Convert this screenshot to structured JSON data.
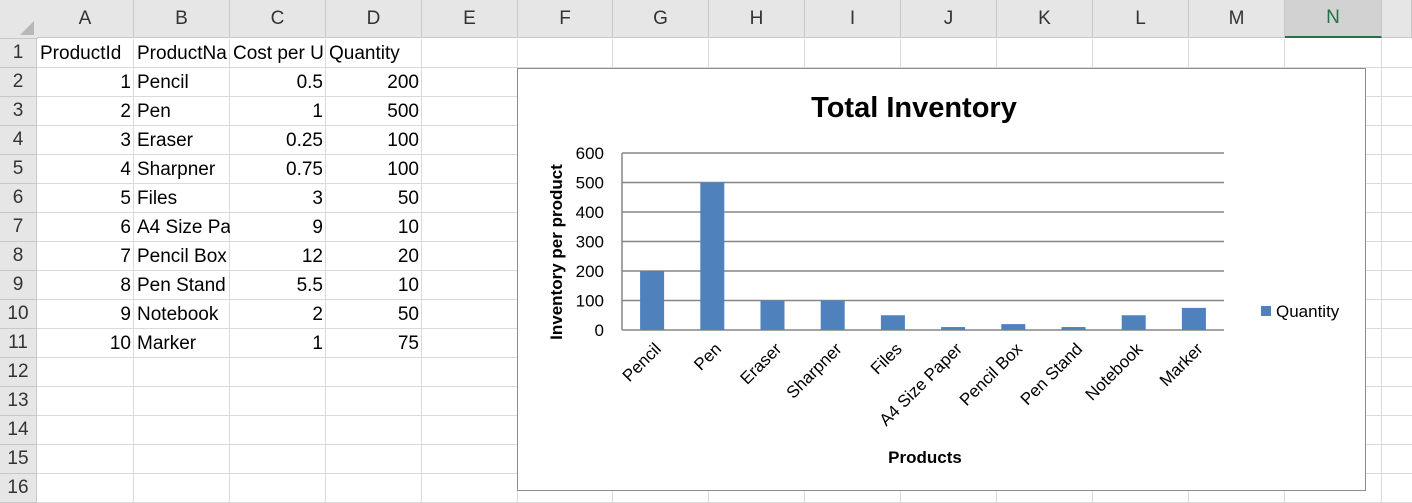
{
  "spreadsheet": {
    "columns": [
      "A",
      "B",
      "C",
      "D",
      "E",
      "F",
      "G",
      "H",
      "I",
      "J",
      "K",
      "L",
      "M",
      "N"
    ],
    "selected_column": "N",
    "rows": [
      "1",
      "2",
      "3",
      "4",
      "5",
      "6",
      "7",
      "8",
      "9",
      "10",
      "11",
      "12",
      "13",
      "14",
      "15",
      "16"
    ],
    "headers": [
      "ProductId",
      "ProductNa",
      "Cost per U",
      "Quantity"
    ],
    "data_rows": [
      {
        "id": "1",
        "name": "Pencil",
        "cost": "0.5",
        "qty": "200"
      },
      {
        "id": "2",
        "name": "Pen",
        "cost": "1",
        "qty": "500"
      },
      {
        "id": "3",
        "name": "Eraser",
        "cost": "0.25",
        "qty": "100"
      },
      {
        "id": "4",
        "name": "Sharpner",
        "cost": "0.75",
        "qty": "100"
      },
      {
        "id": "5",
        "name": "Files",
        "cost": "3",
        "qty": "50"
      },
      {
        "id": "6",
        "name": "A4 Size Pa",
        "cost": "9",
        "qty": "10"
      },
      {
        "id": "7",
        "name": "Pencil Box",
        "cost": "12",
        "qty": "20"
      },
      {
        "id": "8",
        "name": "Pen Stand",
        "cost": "5.5",
        "qty": "10"
      },
      {
        "id": "9",
        "name": "Notebook",
        "cost": "2",
        "qty": "50"
      },
      {
        "id": "10",
        "name": "Marker",
        "cost": "1",
        "qty": "75"
      }
    ]
  },
  "colors": {
    "bar": "#4f81bd",
    "gridline": "#868686",
    "header_bg": "#e6e6e6",
    "selected_accent": "#217346"
  },
  "chart_data": {
    "type": "bar",
    "title": "Total Inventory",
    "xlabel": "Products",
    "ylabel": "Inventory per product",
    "categories": [
      "Pencil",
      "Pen",
      "Eraser",
      "Sharpner",
      "Files",
      "A4 Size Paper",
      "Pencil Box",
      "Pen Stand",
      "Notebook",
      "Marker"
    ],
    "series": [
      {
        "name": "Quantity",
        "values": [
          200,
          500,
          100,
          100,
          50,
          10,
          20,
          10,
          50,
          75
        ]
      }
    ],
    "ylim": [
      0,
      600
    ],
    "yticks": [
      "0",
      "100",
      "200",
      "300",
      "400",
      "500",
      "600"
    ],
    "grid": true,
    "legend": "right"
  }
}
